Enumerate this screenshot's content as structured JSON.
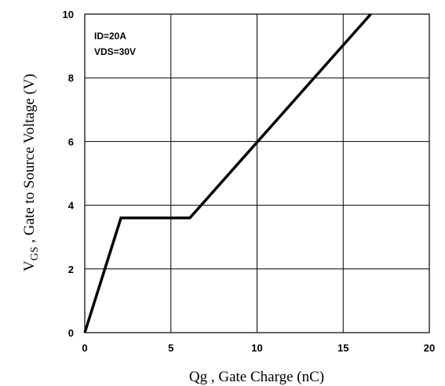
{
  "chart_data": {
    "type": "line",
    "xlabel": "Qg , Gate Charge (nC)",
    "ylabel_main": "V",
    "ylabel_sub": "GS",
    "ylabel_rest": " , Gate to Source Voltage (V)",
    "xlim": [
      0,
      20
    ],
    "ylim": [
      0,
      10
    ],
    "grid": true,
    "x_ticks": [
      "0",
      "5",
      "10",
      "15",
      "20"
    ],
    "y_ticks": [
      "0",
      "2",
      "4",
      "6",
      "8",
      "10"
    ],
    "annotations": [
      "ID=20A",
      "VDS=30V"
    ],
    "series": [
      {
        "x": [
          0,
          2.1,
          6.1,
          16.6
        ],
        "y": [
          0,
          3.6,
          3.6,
          10
        ]
      }
    ]
  }
}
